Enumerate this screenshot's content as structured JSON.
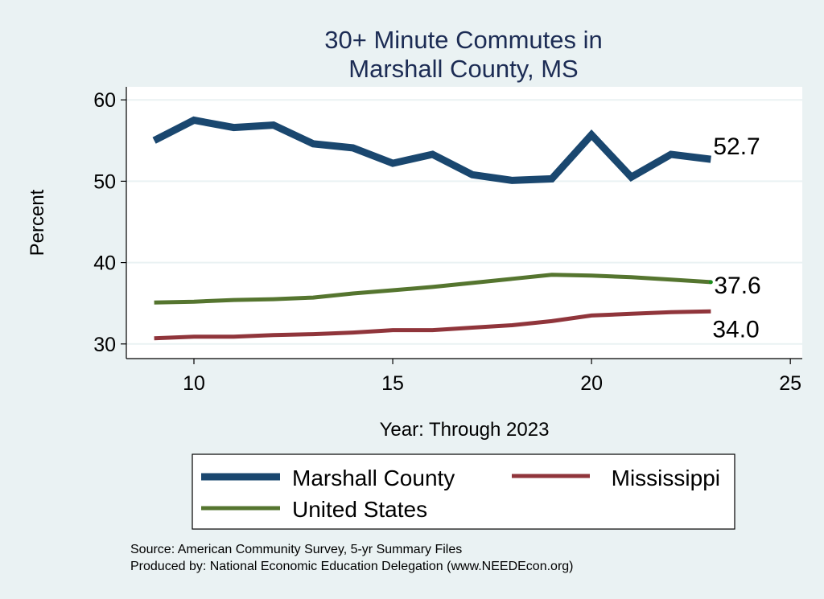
{
  "chart_data": {
    "type": "line",
    "title": [
      "30+ Minute Commutes in",
      "Marshall County, MS"
    ],
    "xlabel": "Year: Through 2023",
    "ylabel": "Percent",
    "xlim": [
      8.3,
      25.3
    ],
    "ylim": [
      28.2,
      61.6
    ],
    "xticks": [
      10,
      15,
      20,
      25
    ],
    "yticks": [
      30,
      40,
      50,
      60
    ],
    "grid": "horizontal",
    "x": [
      9,
      10,
      11,
      12,
      13,
      14,
      15,
      16,
      17,
      18,
      19,
      20,
      21,
      22,
      23
    ],
    "series": [
      {
        "name": "Marshall County",
        "color": "#1a476f",
        "values": [
          55.0,
          57.5,
          56.6,
          56.9,
          54.6,
          54.1,
          52.2,
          53.3,
          50.8,
          50.1,
          50.3,
          55.7,
          50.5,
          53.3,
          52.7
        ],
        "end_label": "52.7"
      },
      {
        "name": "Mississippi",
        "color": "#90353b",
        "values": [
          30.7,
          30.9,
          30.9,
          31.1,
          31.2,
          31.4,
          31.7,
          31.7,
          32.0,
          32.3,
          32.8,
          33.5,
          33.7,
          33.9,
          34.0
        ],
        "end_label": "34.0"
      },
      {
        "name": "United States",
        "color": "#55752f",
        "values": [
          35.1,
          35.2,
          35.4,
          35.5,
          35.7,
          36.2,
          36.6,
          37.0,
          37.5,
          38.0,
          38.5,
          38.4,
          38.2,
          37.9,
          37.6
        ],
        "end_label": "37.6"
      }
    ],
    "legend": {
      "placement": "bottom",
      "entries": [
        "Marshall County",
        "Mississippi",
        "United States"
      ]
    },
    "notes": [
      "Source: American Community Survey, 5-yr Summary Files",
      "Produced by: National Economic Education Delegation (www.NEEDEcon.org)"
    ]
  }
}
